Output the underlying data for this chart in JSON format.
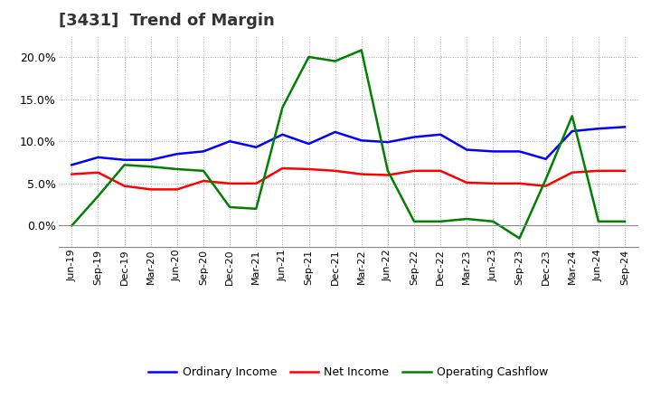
{
  "title": "[3431]  Trend of Margin",
  "labels": [
    "Jun-19",
    "Sep-19",
    "Dec-19",
    "Mar-20",
    "Jun-20",
    "Sep-20",
    "Dec-20",
    "Mar-21",
    "Jun-21",
    "Sep-21",
    "Dec-21",
    "Mar-22",
    "Jun-22",
    "Sep-22",
    "Dec-22",
    "Mar-23",
    "Jun-23",
    "Sep-23",
    "Dec-23",
    "Mar-24",
    "Jun-24",
    "Sep-24"
  ],
  "ordinary_income": [
    7.2,
    8.1,
    7.8,
    7.8,
    8.5,
    8.8,
    10.0,
    9.3,
    10.8,
    9.7,
    11.1,
    10.1,
    9.9,
    10.5,
    10.8,
    9.0,
    8.8,
    8.8,
    7.9,
    11.2,
    11.5,
    11.7
  ],
  "net_income": [
    6.1,
    6.3,
    4.7,
    4.3,
    4.3,
    5.3,
    5.0,
    5.0,
    6.8,
    6.7,
    6.5,
    6.1,
    6.0,
    6.5,
    6.5,
    5.1,
    5.0,
    5.0,
    4.7,
    6.3,
    6.5,
    6.5
  ],
  "operating_cashflow": [
    0.0,
    3.5,
    7.2,
    7.0,
    6.7,
    6.5,
    2.2,
    2.0,
    14.0,
    20.0,
    19.5,
    20.8,
    6.5,
    0.5,
    0.5,
    0.8,
    0.5,
    -1.5,
    5.5,
    13.0,
    0.5,
    0.5
  ],
  "ordinary_income_color": "#0000ff",
  "net_income_color": "#ff0000",
  "operating_cashflow_color": "#008000",
  "ylim": [
    -2.5,
    22.5
  ],
  "yticks": [
    0.0,
    5.0,
    10.0,
    15.0,
    20.0
  ],
  "background_color": "#ffffff",
  "grid_color": "#999999",
  "title_fontsize": 13,
  "title_color": "#333333"
}
